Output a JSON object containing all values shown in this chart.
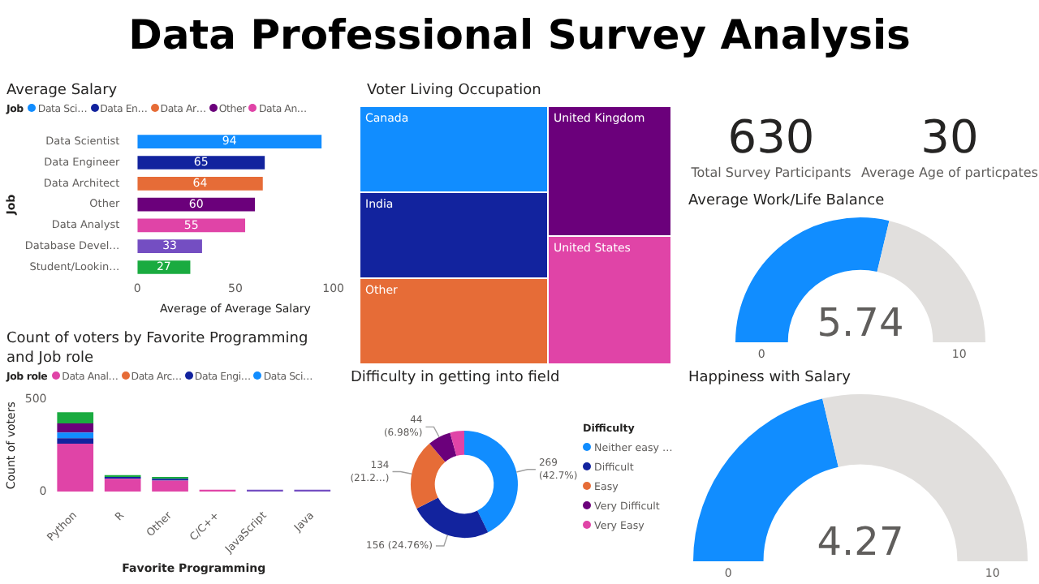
{
  "chart_data": [
    {
      "type": "other",
      "title": "Data Professional Survey Analysis"
    },
    {
      "type": "bar",
      "title": "Average Salary",
      "orientation": "horizontal",
      "stacked": true,
      "legend": "top",
      "legend_title": "Job",
      "data_labels": true,
      "grid": false,
      "xlabel": "Average of Average Salary",
      "ylabel": "Job",
      "xlim": [
        0,
        100
      ],
      "xticks": [
        0,
        50,
        100
      ],
      "categories": [
        "Data Scientist",
        "Data Engineer",
        "Data Architect",
        "Other",
        "Data Analyst",
        "Database Devel…",
        "Student/Lookin…"
      ],
      "series": [
        {
          "name": "Data Sci…",
          "color": "#118dff",
          "values": [
            94,
            null,
            null,
            null,
            null,
            null,
            null
          ]
        },
        {
          "name": "Data En…",
          "color": "#12239e",
          "values": [
            null,
            65,
            null,
            null,
            null,
            null,
            null
          ]
        },
        {
          "name": "Data Ar…",
          "color": "#e66c37",
          "values": [
            null,
            null,
            64,
            null,
            null,
            null,
            null
          ]
        },
        {
          "name": "Other",
          "color": "#6b007b",
          "values": [
            null,
            null,
            null,
            60,
            null,
            null,
            null
          ]
        },
        {
          "name": "Data An…",
          "color": "#e044a7",
          "values": [
            null,
            null,
            null,
            null,
            55,
            null,
            null
          ]
        },
        {
          "color": "#744ec2",
          "values": [
            null,
            null,
            null,
            null,
            null,
            33,
            null
          ]
        },
        {
          "color": "#1aab40",
          "values": [
            null,
            null,
            null,
            null,
            null,
            null,
            27
          ]
        }
      ]
    },
    {
      "type": "other",
      "title": "Voter Living Occupation",
      "categories": [
        "Canada",
        "India",
        "Other",
        "United Kingdom",
        "United States"
      ],
      "colors": [
        "#118dff",
        "#12239e",
        "#e66c37",
        "#6b007b",
        "#e044a7"
      ]
    },
    {
      "type": "other",
      "categories": [
        "Total Survey Participants",
        "Average Age of particpates"
      ],
      "values": [
        630,
        30
      ],
      "data_labels": true
    },
    {
      "type": "donut",
      "title": "Average Work/Life Balance",
      "categories": [
        null,
        null
      ],
      "values": [
        57.4,
        42.6
      ],
      "colors": [
        "#118dff",
        "#e1dfdd"
      ],
      "annotations": [
        "5.74",
        "0",
        "10"
      ]
    },
    {
      "type": "bar",
      "title": "Count of voters by Favorite Programming and Job role",
      "stacked": true,
      "legend": "top",
      "legend_title": "Job role",
      "grid": false,
      "xlabel": "Favorite Programming",
      "ylabel": "Count of voters",
      "ylim": [
        0,
        500
      ],
      "yticks": [
        0,
        500
      ],
      "categories": [
        "Python",
        "R",
        "Other",
        "C/C++",
        "JavaScript",
        "Java"
      ],
      "series": [
        {
          "name": "Data Anal…",
          "color": "#e044a7",
          "values": [
            260,
            70,
            60,
            10,
            null,
            null
          ]
        },
        {
          "name": "Data Arc…",
          "color": "#e66c37",
          "values": [
            null,
            null,
            null,
            null,
            null,
            null
          ]
        },
        {
          "name": "Data Engi…",
          "color": "#12239e",
          "values": [
            30,
            10,
            10,
            null,
            null,
            null
          ]
        },
        {
          "name": "Data Sci…",
          "color": "#118dff",
          "values": [
            30,
            null,
            null,
            null,
            null,
            null
          ]
        },
        {
          "color": "#6b007b",
          "values": [
            50,
            null,
            null,
            null,
            null,
            null
          ]
        },
        {
          "color": "#1aab40",
          "values": [
            60,
            10,
            10,
            null,
            null,
            null
          ]
        },
        {
          "color": "#744ec2",
          "values": [
            null,
            null,
            null,
            null,
            10,
            10
          ]
        }
      ]
    },
    {
      "type": "donut",
      "title": "Difficulty in getting into field",
      "legend": "right",
      "legend_title": "Difficulty",
      "categories": [
        "Neither easy …",
        "Difficult",
        "Easy",
        "Very Difficult",
        "Very Easy"
      ],
      "values": [
        269,
        156,
        134,
        44,
        27
      ],
      "colors": [
        "#118dff",
        "#12239e",
        "#e66c37",
        "#6b007b",
        "#e044a7"
      ],
      "value_labels": [
        "269 (42.7%)",
        "156 (24.76%)",
        "134 (21.2…)",
        "44 (6.98%)",
        null
      ]
    },
    {
      "type": "donut",
      "title": "Happiness with Salary",
      "categories": [
        null,
        null
      ],
      "values": [
        42.7,
        57.3
      ],
      "colors": [
        "#118dff",
        "#e1dfdd"
      ],
      "annotations": [
        "4.27",
        "0",
        "10"
      ]
    }
  ]
}
